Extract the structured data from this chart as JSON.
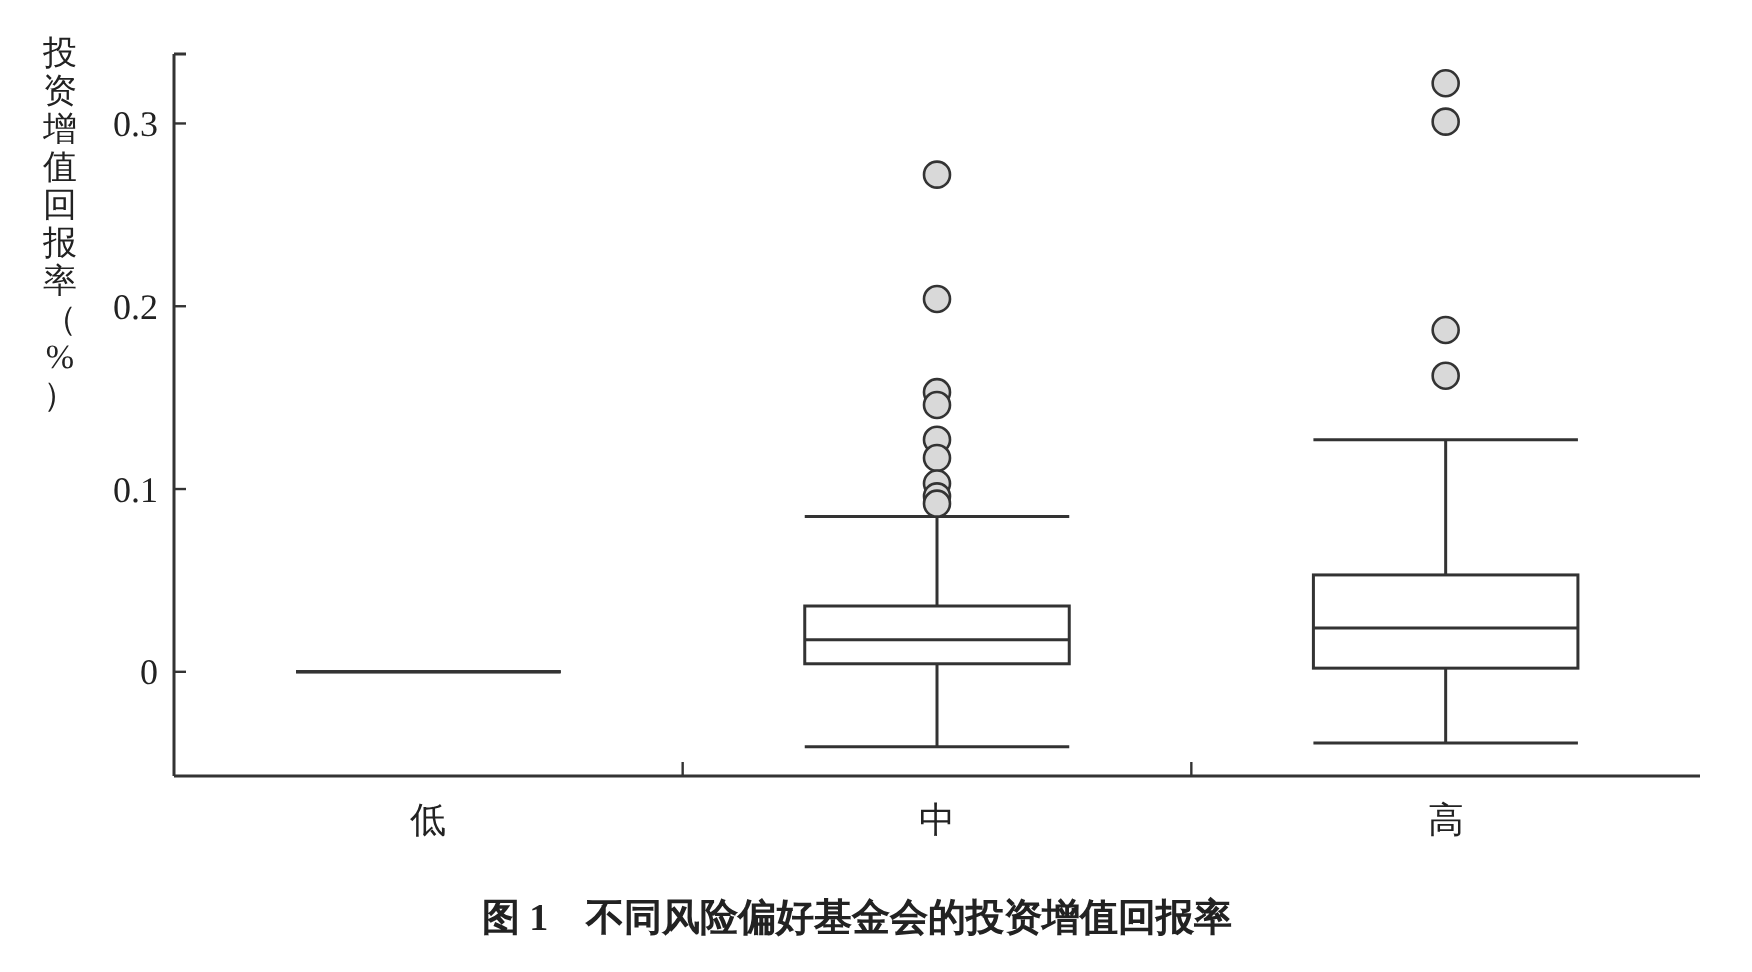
{
  "chart_data": {
    "type": "box",
    "title": "图 1　不同风险偏好基金会的投资增值回报率",
    "ylabel": "投资增值回报率（%）",
    "categories": [
      "低",
      "中",
      "高"
    ],
    "ylim": [
      -0.057,
      0.338
    ],
    "yticks": [
      0,
      0.1,
      0.2,
      0.3
    ],
    "grid": false,
    "boxes": [
      {
        "low": 0,
        "q1": 0,
        "median": 0,
        "q3": 0,
        "high": 0
      },
      {
        "low": -0.041,
        "q1": 0.0044,
        "median": 0.0175,
        "q3": 0.036,
        "high": 0.085,
        "outliers": [
          0.272,
          0.204,
          0.153,
          0.146,
          0.127,
          0.117,
          0.103,
          0.096,
          0.092
        ]
      },
      {
        "low": -0.039,
        "q1": 0.002,
        "median": 0.024,
        "q3": 0.053,
        "high": 0.127,
        "outliers": [
          0.322,
          0.301,
          0.187,
          0.162
        ]
      }
    ]
  }
}
